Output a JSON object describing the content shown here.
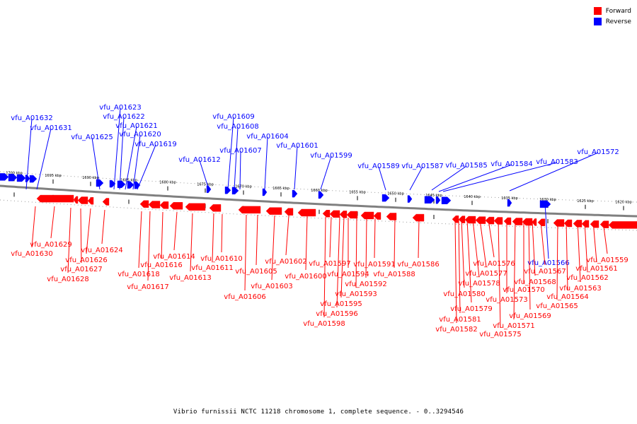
{
  "caption": "Vibrio furnissii NCTC 11218 chromosome 1, complete sequence. - 0..3294546",
  "colors": {
    "forward": "#ff0000",
    "reverse": "#0000ff",
    "backbone": "#808080"
  },
  "legend": [
    {
      "label": "Forward",
      "color": "#ff0000"
    },
    {
      "label": "Reverse",
      "color": "#0000ff"
    }
  ],
  "scale": {
    "unit": "kbp",
    "ticks": [
      "1700 kbp",
      "1695 kbp",
      "1690 kbp",
      "1685 kbp",
      "1680 kbp",
      "1675 kbp",
      "1670 kbp",
      "1665 kbp",
      "1660 kbp",
      "1655 kbp",
      "1650 kbp",
      "1645 kbp",
      "1640 kbp",
      "1635 kbp",
      "1630 kbp",
      "1625 kbp",
      "1620 kbp"
    ]
  },
  "reverse_genes": [
    "vfu_A01632",
    "vfu_A01631",
    "vfu_A01625",
    "vfu_A01623",
    "vfu_A01622",
    "vfu_A01621",
    "vfu_A01620",
    "vfu_A01619",
    "vfu_A01612",
    "vfu_A01609",
    "vfu_A01608",
    "vfu_A01607",
    "vfu_A01604",
    "vfu_A01601",
    "vfu_A01599",
    "vfu_A01589",
    "vfu_A01587",
    "vfu_A01585",
    "vfu_A01584",
    "vfu_A01583",
    "vfu_A01572",
    "vfu_A01566"
  ],
  "forward_genes": [
    "vfu_A01630",
    "vfu_A01629",
    "vfu_A01628",
    "vfu_A01627",
    "vfu_A01626",
    "vfu_A01624",
    "vfu_A01618",
    "vfu_A01617",
    "vfu_A01616",
    "vfu_A01614",
    "vfu_A01613",
    "vfu_A01611",
    "vfu_A01610",
    "vfu_A01606",
    "vfu_A01605",
    "vfu_A01603",
    "vfu_A01602",
    "vfu_A01600",
    "vfu_A01598",
    "vfu_A01597",
    "vfu_A01596",
    "vfu_A01595",
    "vfu_A01594",
    "vfu_A01593",
    "vfu_A01592",
    "vfu_A01591",
    "vfu_A01588",
    "vfu_A01586",
    "vfu_A01582",
    "vfu_A01581",
    "vfu_A01580",
    "vfu_A01579",
    "vfu_A01578",
    "vfu_A01577",
    "vfu_A01576",
    "vfu_A01575",
    "vfu_A01573",
    "vfu_A01571",
    "vfu_A01570",
    "vfu_A01569",
    "vfu_A01568",
    "vfu_A01567",
    "vfu_A01565",
    "vfu_A01564",
    "vfu_A01563",
    "vfu_A01562",
    "vfu_A01561",
    "vfu_A01559"
  ]
}
